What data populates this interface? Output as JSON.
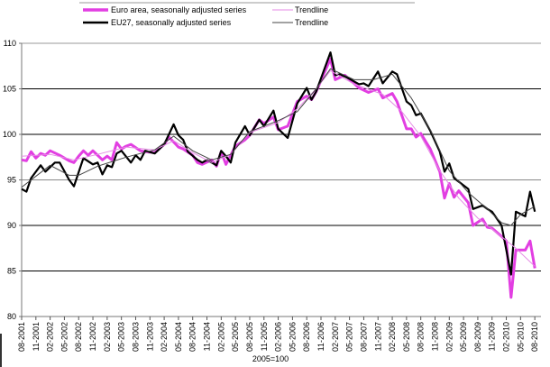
{
  "chart_data": {
    "type": "line",
    "title": "",
    "xlabel": "2005=100",
    "ylabel": "",
    "ylim": [
      80,
      110
    ],
    "yticks": [
      80,
      85,
      90,
      95,
      100,
      105,
      110
    ],
    "xticks": [
      "08-2001",
      "11-2001",
      "02-2002",
      "05-2002",
      "08-2002",
      "11-2002",
      "02-2003",
      "05-2003",
      "08-2003",
      "11-2003",
      "02-2004",
      "05-2004",
      "08-2004",
      "11-2004",
      "02-2005",
      "05-2005",
      "08-2005",
      "11-2005",
      "02-2006",
      "05-2006",
      "08-2006",
      "11-2006",
      "02-2007",
      "05-2007",
      "08-2007",
      "11-2007",
      "02-2008",
      "05-2008",
      "08-2008",
      "11-2008",
      "02-2009",
      "05-2009",
      "08-2009",
      "11-2009",
      "02-2010",
      "05-2010",
      "08-2010"
    ],
    "grid": true,
    "legend_placement": "top",
    "series": [
      {
        "name": "Euro area, seasonally adjusted series",
        "color": "#e23ee2",
        "style": "thick",
        "points": [
          [
            "08-2001",
            97.2
          ],
          [
            "09-2001",
            97.1
          ],
          [
            "10-2001",
            98.1
          ],
          [
            "11-2001",
            97.4
          ],
          [
            "12-2001",
            97.9
          ],
          [
            "01-2002",
            97.7
          ],
          [
            "02-2002",
            98.2
          ],
          [
            "04-2002",
            97.7
          ],
          [
            "06-2002",
            97.1
          ],
          [
            "07-2002",
            96.9
          ],
          [
            "08-2002",
            97.6
          ],
          [
            "09-2002",
            98.2
          ],
          [
            "10-2002",
            97.7
          ],
          [
            "11-2002",
            98.2
          ],
          [
            "01-2003",
            97.2
          ],
          [
            "02-2003",
            97.6
          ],
          [
            "03-2003",
            97.2
          ],
          [
            "04-2003",
            99.1
          ],
          [
            "05-2003",
            98.4
          ],
          [
            "06-2003",
            98.7
          ],
          [
            "07-2003",
            98.9
          ],
          [
            "09-2003",
            98.2
          ],
          [
            "10-2003",
            98.1
          ],
          [
            "12-2003",
            98.0
          ],
          [
            "02-2004",
            98.9
          ],
          [
            "03-2004",
            99.7
          ],
          [
            "05-2004",
            98.6
          ],
          [
            "06-2004",
            98.4
          ],
          [
            "08-2004",
            97.7
          ],
          [
            "09-2004",
            96.9
          ],
          [
            "10-2004",
            96.7
          ],
          [
            "12-2004",
            97.2
          ],
          [
            "01-2005",
            96.5
          ],
          [
            "02-2005",
            98.1
          ],
          [
            "03-2005",
            96.7
          ],
          [
            "05-2005",
            98.7
          ],
          [
            "07-2005",
            99.4
          ],
          [
            "08-2005",
            99.9
          ],
          [
            "10-2005",
            101.6
          ],
          [
            "11-2005",
            101.2
          ],
          [
            "01-2006",
            101.9
          ],
          [
            "02-2006",
            100.5
          ],
          [
            "04-2006",
            100.9
          ],
          [
            "06-2006",
            103.6
          ],
          [
            "08-2006",
            104.2
          ],
          [
            "09-2006",
            103.8
          ],
          [
            "10-2006",
            104.7
          ],
          [
            "01-2007",
            108.3
          ],
          [
            "02-2007",
            106.0
          ],
          [
            "04-2007",
            106.5
          ],
          [
            "07-2007",
            105.1
          ],
          [
            "09-2007",
            104.6
          ],
          [
            "11-2007",
            105.0
          ],
          [
            "12-2007",
            104.0
          ],
          [
            "02-2008",
            104.5
          ],
          [
            "03-2008",
            103.6
          ],
          [
            "05-2008",
            100.6
          ],
          [
            "06-2008",
            100.6
          ],
          [
            "07-2008",
            99.7
          ],
          [
            "08-2008",
            100.1
          ],
          [
            "10-2008",
            98.4
          ],
          [
            "12-2008",
            95.9
          ],
          [
            "01-2009",
            93.0
          ],
          [
            "02-2009",
            94.6
          ],
          [
            "03-2009",
            93.1
          ],
          [
            "04-2009",
            93.8
          ],
          [
            "06-2009",
            92.5
          ],
          [
            "07-2009",
            90.0
          ],
          [
            "09-2009",
            90.7
          ],
          [
            "10-2009",
            89.8
          ],
          [
            "11-2009",
            89.7
          ],
          [
            "01-2010",
            88.8
          ],
          [
            "02-2010",
            88.3
          ],
          [
            "03-2010",
            82.1
          ],
          [
            "04-2010",
            87.3
          ],
          [
            "06-2010",
            87.3
          ],
          [
            "07-2010",
            88.3
          ],
          [
            "08-2010",
            85.3
          ]
        ]
      },
      {
        "name": "Trendline",
        "color": "#e58ae5",
        "style": "thin",
        "points": [
          [
            "08-2001",
            97.6
          ],
          [
            "02-2002",
            97.8
          ],
          [
            "07-2002",
            97.2
          ],
          [
            "12-2002",
            97.8
          ],
          [
            "06-2003",
            98.6
          ],
          [
            "12-2003",
            98.3
          ],
          [
            "04-2004",
            99.3
          ],
          [
            "08-2004",
            98.0
          ],
          [
            "12-2004",
            96.9
          ],
          [
            "04-2005",
            97.8
          ],
          [
            "08-2005",
            100.2
          ],
          [
            "02-2006",
            101.3
          ],
          [
            "06-2006",
            102.8
          ],
          [
            "10-2006",
            105.0
          ],
          [
            "01-2007",
            107.0
          ],
          [
            "06-2007",
            105.5
          ],
          [
            "12-2007",
            104.4
          ],
          [
            "04-2008",
            102.5
          ],
          [
            "08-2008",
            99.8
          ],
          [
            "12-2008",
            96.0
          ],
          [
            "04-2009",
            93.0
          ],
          [
            "08-2009",
            90.8
          ],
          [
            "12-2009",
            89.2
          ],
          [
            "04-2010",
            87.5
          ],
          [
            "08-2010",
            85.5
          ]
        ]
      },
      {
        "name": "EU27, seasonally adjusted series",
        "color": "#000000",
        "style": "thick",
        "points": [
          [
            "08-2001",
            94.0
          ],
          [
            "09-2001",
            93.7
          ],
          [
            "10-2001",
            95.2
          ],
          [
            "12-2001",
            96.6
          ],
          [
            "01-2002",
            95.9
          ],
          [
            "03-2002",
            96.9
          ],
          [
            "04-2002",
            96.9
          ],
          [
            "06-2002",
            95.0
          ],
          [
            "07-2002",
            94.3
          ],
          [
            "09-2002",
            97.4
          ],
          [
            "11-2002",
            96.7
          ],
          [
            "12-2002",
            96.9
          ],
          [
            "01-2003",
            95.6
          ],
          [
            "02-2003",
            96.6
          ],
          [
            "03-2003",
            96.4
          ],
          [
            "04-2003",
            97.9
          ],
          [
            "05-2003",
            98.2
          ],
          [
            "07-2003",
            96.9
          ],
          [
            "08-2003",
            97.7
          ],
          [
            "09-2003",
            97.2
          ],
          [
            "10-2003",
            98.2
          ],
          [
            "12-2003",
            97.9
          ],
          [
            "02-2004",
            98.9
          ],
          [
            "04-2004",
            101.1
          ],
          [
            "05-2004",
            99.9
          ],
          [
            "06-2004",
            99.4
          ],
          [
            "07-2004",
            98.1
          ],
          [
            "09-2004",
            97.2
          ],
          [
            "10-2004",
            96.9
          ],
          [
            "11-2004",
            97.2
          ],
          [
            "01-2005",
            96.6
          ],
          [
            "02-2005",
            98.2
          ],
          [
            "03-2005",
            97.6
          ],
          [
            "04-2005",
            96.9
          ],
          [
            "05-2005",
            99.1
          ],
          [
            "07-2005",
            100.9
          ],
          [
            "08-2005",
            99.9
          ],
          [
            "10-2005",
            101.6
          ],
          [
            "11-2005",
            100.9
          ],
          [
            "01-2006",
            102.6
          ],
          [
            "02-2006",
            100.6
          ],
          [
            "04-2006",
            99.6
          ],
          [
            "06-2006",
            103.4
          ],
          [
            "08-2006",
            105.1
          ],
          [
            "09-2006",
            103.8
          ],
          [
            "10-2006",
            104.7
          ],
          [
            "01-2007",
            109.0
          ],
          [
            "02-2007",
            106.5
          ],
          [
            "03-2007",
            106.6
          ],
          [
            "05-2007",
            106.1
          ],
          [
            "07-2007",
            105.5
          ],
          [
            "08-2007",
            105.6
          ],
          [
            "09-2007",
            105.3
          ],
          [
            "11-2007",
            106.9
          ],
          [
            "12-2007",
            105.6
          ],
          [
            "02-2008",
            106.9
          ],
          [
            "03-2008",
            106.6
          ],
          [
            "04-2008",
            105.1
          ],
          [
            "05-2008",
            103.6
          ],
          [
            "06-2008",
            103.2
          ],
          [
            "07-2008",
            102.1
          ],
          [
            "08-2008",
            102.3
          ],
          [
            "10-2008",
            100.4
          ],
          [
            "12-2008",
            98.1
          ],
          [
            "01-2009",
            95.9
          ],
          [
            "02-2009",
            96.8
          ],
          [
            "03-2009",
            95.2
          ],
          [
            "04-2009",
            94.8
          ],
          [
            "06-2009",
            94.0
          ],
          [
            "07-2009",
            91.8
          ],
          [
            "09-2009",
            92.2
          ],
          [
            "10-2009",
            91.8
          ],
          [
            "11-2009",
            91.5
          ],
          [
            "01-2010",
            90.0
          ],
          [
            "03-2010",
            84.6
          ],
          [
            "04-2010",
            91.5
          ],
          [
            "06-2010",
            91.0
          ],
          [
            "07-2010",
            93.7
          ],
          [
            "08-2010",
            91.5
          ]
        ]
      },
      {
        "name": "Trendline",
        "color": "#444444",
        "style": "thin",
        "points": [
          [
            "08-2001",
            94.2
          ],
          [
            "02-2002",
            96.6
          ],
          [
            "06-2002",
            95.5
          ],
          [
            "08-2002",
            95.5
          ],
          [
            "12-2002",
            96.5
          ],
          [
            "06-2003",
            97.5
          ],
          [
            "12-2003",
            98.3
          ],
          [
            "04-2004",
            99.8
          ],
          [
            "08-2004",
            98.2
          ],
          [
            "12-2004",
            97.2
          ],
          [
            "04-2005",
            97.8
          ],
          [
            "08-2005",
            100.3
          ],
          [
            "02-2006",
            101.5
          ],
          [
            "06-2006",
            102.5
          ],
          [
            "10-2006",
            105.0
          ],
          [
            "01-2007",
            107.2
          ],
          [
            "06-2007",
            106.0
          ],
          [
            "10-2007",
            106.0
          ],
          [
            "02-2008",
            106.6
          ],
          [
            "06-2008",
            104.0
          ],
          [
            "10-2008",
            100.5
          ],
          [
            "02-2009",
            96.0
          ],
          [
            "06-2009",
            93.6
          ],
          [
            "10-2009",
            91.8
          ],
          [
            "01-2010",
            90.3
          ],
          [
            "03-2010",
            90.0
          ],
          [
            "05-2010",
            91.2
          ],
          [
            "08-2010",
            92.1
          ]
        ]
      }
    ]
  }
}
